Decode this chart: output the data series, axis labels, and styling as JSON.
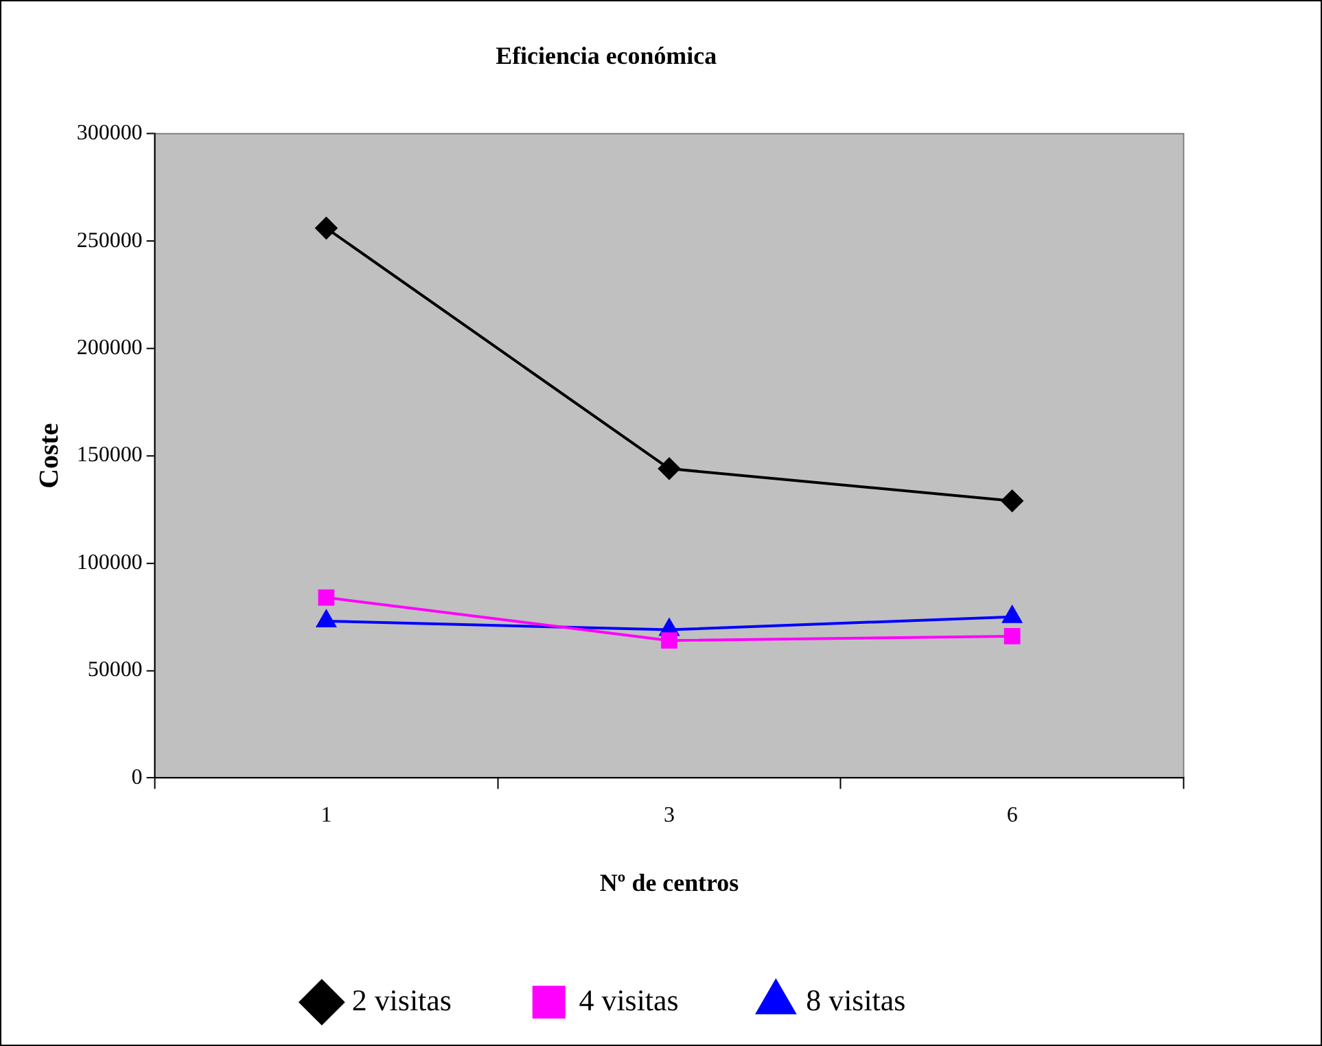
{
  "chart_data": {
    "type": "line",
    "title": "Eficiencia económica",
    "xlabel": "Nº de centros",
    "ylabel": "Coste",
    "categories": [
      "1",
      "3",
      "6"
    ],
    "series": [
      {
        "name": "2 visitas",
        "color": "#000000",
        "marker": "diamond",
        "values": [
          256000,
          144000,
          129000
        ]
      },
      {
        "name": "4 visitas",
        "color": "#ff00ff",
        "marker": "square",
        "values": [
          84000,
          64000,
          66000
        ]
      },
      {
        "name": "8 visitas",
        "color": "#0000ff",
        "marker": "triangle",
        "values": [
          73000,
          69000,
          75000
        ]
      }
    ],
    "ylim": [
      0,
      300000
    ],
    "yticks": [
      0,
      50000,
      100000,
      150000,
      200000,
      250000,
      300000
    ],
    "grid": false,
    "legend": "bottom"
  }
}
